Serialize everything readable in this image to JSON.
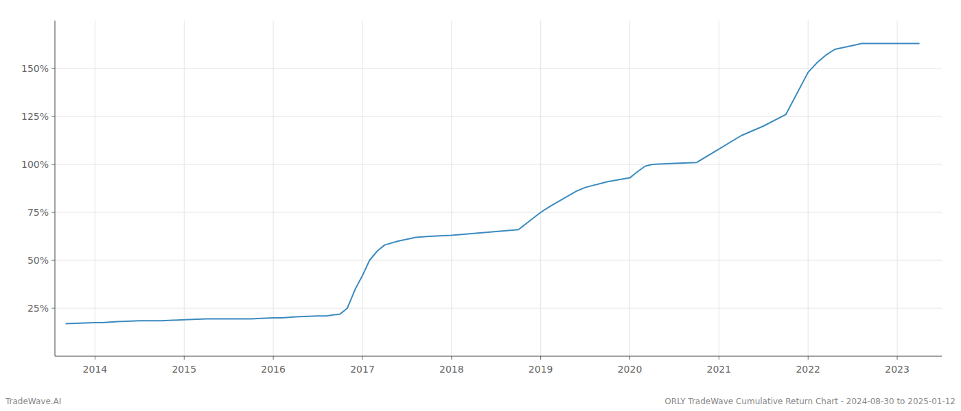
{
  "chart_data": {
    "type": "line",
    "x": [
      2013.67,
      2014.0,
      2014.08,
      2014.25,
      2014.5,
      2014.75,
      2015.0,
      2015.25,
      2015.5,
      2015.75,
      2016.0,
      2016.1,
      2016.25,
      2016.5,
      2016.6,
      2016.67,
      2016.75,
      2016.83,
      2016.92,
      2017.0,
      2017.08,
      2017.17,
      2017.25,
      2017.4,
      2017.5,
      2017.6,
      2017.75,
      2018.0,
      2018.25,
      2018.5,
      2018.75,
      2019.0,
      2019.1,
      2019.25,
      2019.4,
      2019.5,
      2019.75,
      2020.0,
      2020.08,
      2020.17,
      2020.25,
      2020.5,
      2020.75,
      2021.0,
      2021.25,
      2021.5,
      2021.75,
      2022.0,
      2022.1,
      2022.2,
      2022.3,
      2022.4,
      2022.5,
      2022.6,
      2022.75,
      2023.0,
      2023.25
    ],
    "values": [
      17,
      17.5,
      17.5,
      18,
      18.5,
      18.5,
      19,
      19.5,
      19.5,
      19.5,
      20,
      20,
      20.5,
      21,
      21,
      21.5,
      22,
      25,
      35,
      42,
      50,
      55,
      58,
      60,
      61,
      62,
      62.5,
      63,
      64,
      65,
      66,
      75,
      78,
      82,
      86,
      88,
      91,
      93,
      96,
      99,
      100,
      100.5,
      101,
      108,
      115,
      120,
      126,
      148,
      153,
      157,
      160,
      161,
      162,
      163,
      163,
      163,
      163
    ],
    "color": "#3a8abf",
    "xlim": [
      2013.55,
      2023.5
    ],
    "ylim": [
      0,
      175
    ],
    "xticks": [
      2014,
      2015,
      2016,
      2017,
      2018,
      2019,
      2020,
      2021,
      2022,
      2023
    ],
    "yticks": [
      {
        "value": 25,
        "label": "25%"
      },
      {
        "value": 50,
        "label": "50%"
      },
      {
        "value": 75,
        "label": "75%"
      },
      {
        "value": 100,
        "label": "100%"
      },
      {
        "value": 125,
        "label": "125%"
      },
      {
        "value": 150,
        "label": "150%"
      }
    ],
    "grid": true,
    "annotations": [
      "TradeWave.AI",
      "ORLY TradeWave Cumulative Return Chart - 2024-08-30 to 2025-01-12"
    ]
  }
}
